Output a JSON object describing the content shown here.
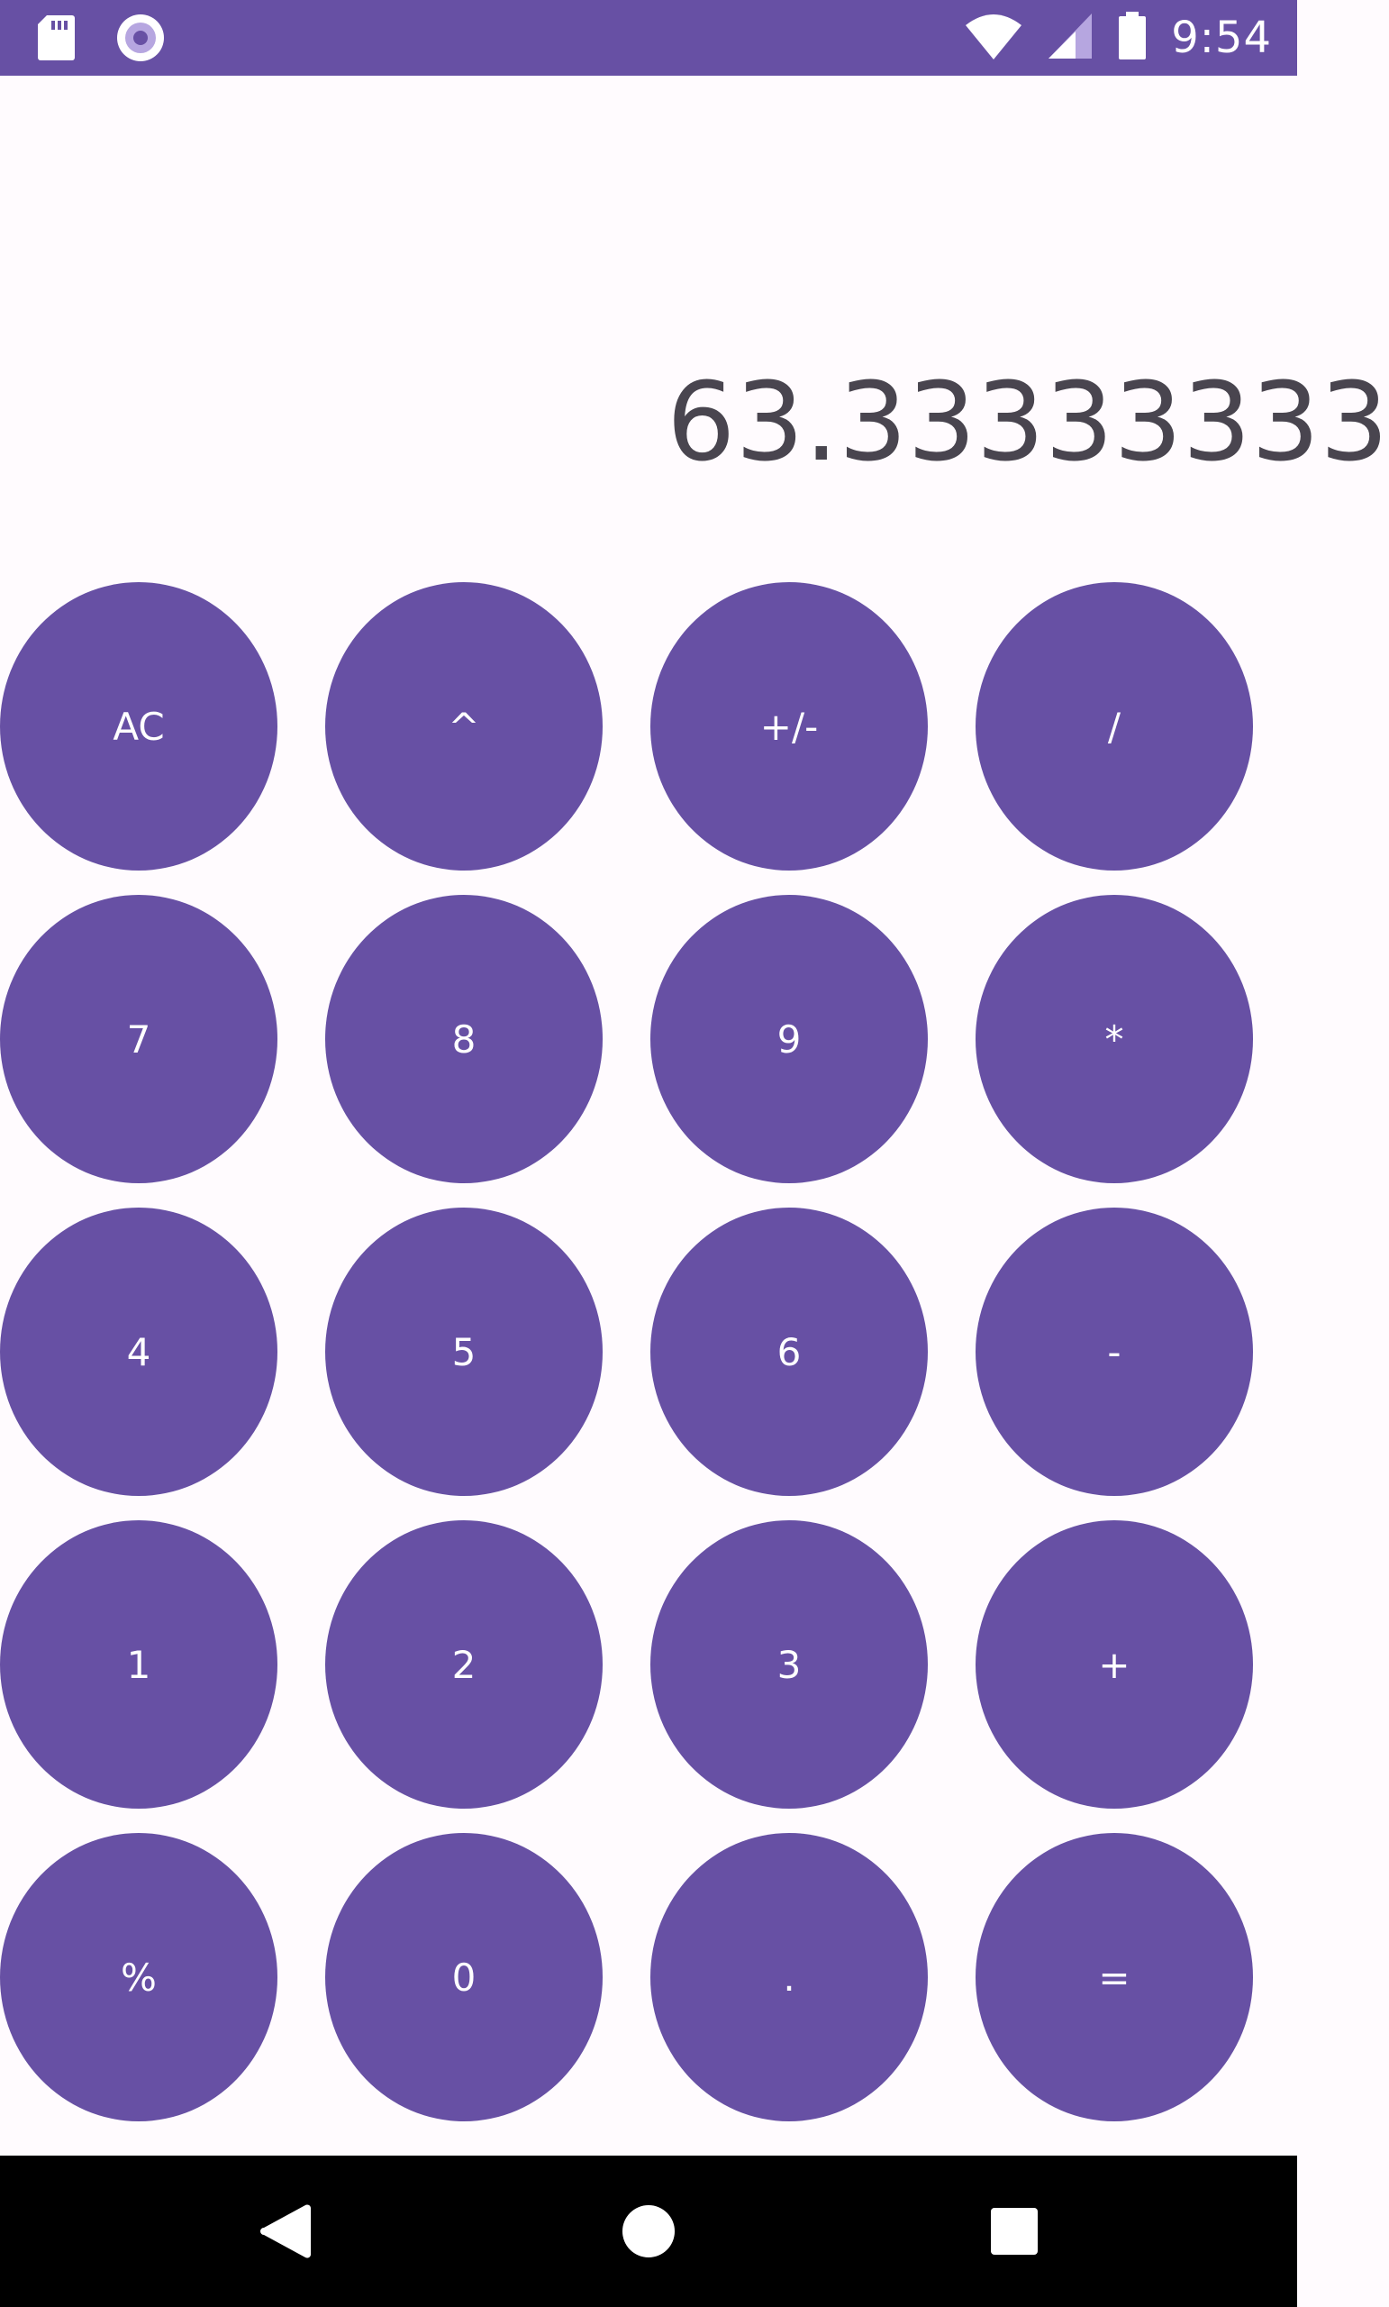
{
  "status_bar": {
    "time": "9:54",
    "icons": [
      "sd-card-icon",
      "record-icon",
      "wifi-icon",
      "signal-icon",
      "battery-icon"
    ]
  },
  "display": {
    "value": "63.33333333"
  },
  "keypad": {
    "rows": [
      [
        "AC",
        "^",
        "+/-",
        "/"
      ],
      [
        "7",
        "8",
        "9",
        "*"
      ],
      [
        "4",
        "5",
        "6",
        "-"
      ],
      [
        "1",
        "2",
        "3",
        "+"
      ],
      [
        "%",
        "0",
        ".",
        "="
      ]
    ]
  },
  "nav_bar": {
    "buttons": [
      "back-icon",
      "home-icon",
      "recents-icon"
    ]
  },
  "colors": {
    "accent": "#6750a4",
    "background": "#fffbfe",
    "display_text": "#49454f",
    "key_text": "#ffffff"
  }
}
